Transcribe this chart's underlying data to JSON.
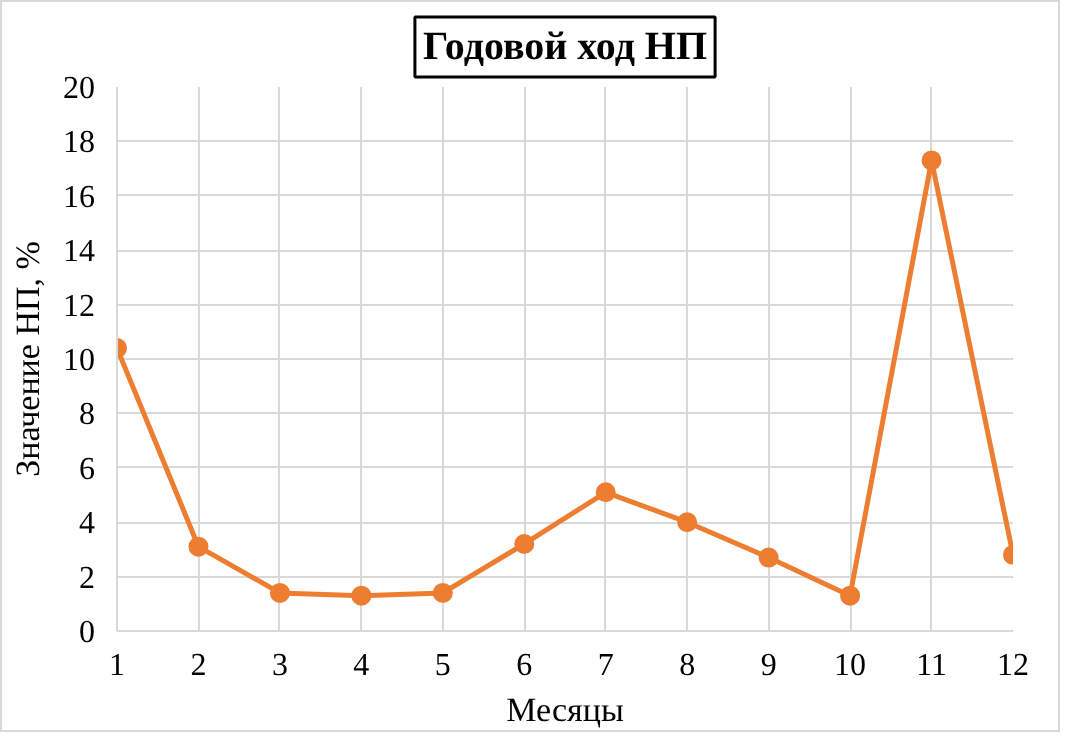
{
  "chart_data": {
    "type": "line",
    "title": "Годовой ход НП",
    "xlabel": "Месяцы",
    "ylabel": "Значение НП, %",
    "x": [
      1,
      2,
      3,
      4,
      5,
      6,
      7,
      8,
      9,
      10,
      11,
      12
    ],
    "series": [
      {
        "color": "#ed7d31",
        "values": [
          10.4,
          3.1,
          1.4,
          1.3,
          1.4,
          3.2,
          5.1,
          4.0,
          2.7,
          1.3,
          17.3,
          2.8
        ]
      }
    ],
    "xlim": [
      1,
      12
    ],
    "xticks": [
      1,
      2,
      3,
      4,
      5,
      6,
      7,
      8,
      9,
      10,
      11,
      12
    ],
    "ylim": [
      0,
      20
    ],
    "yticks": [
      0,
      2,
      4,
      6,
      8,
      10,
      12,
      14,
      16,
      18,
      20
    ],
    "grid": true,
    "marker": "circle",
    "line_style": "solid"
  }
}
